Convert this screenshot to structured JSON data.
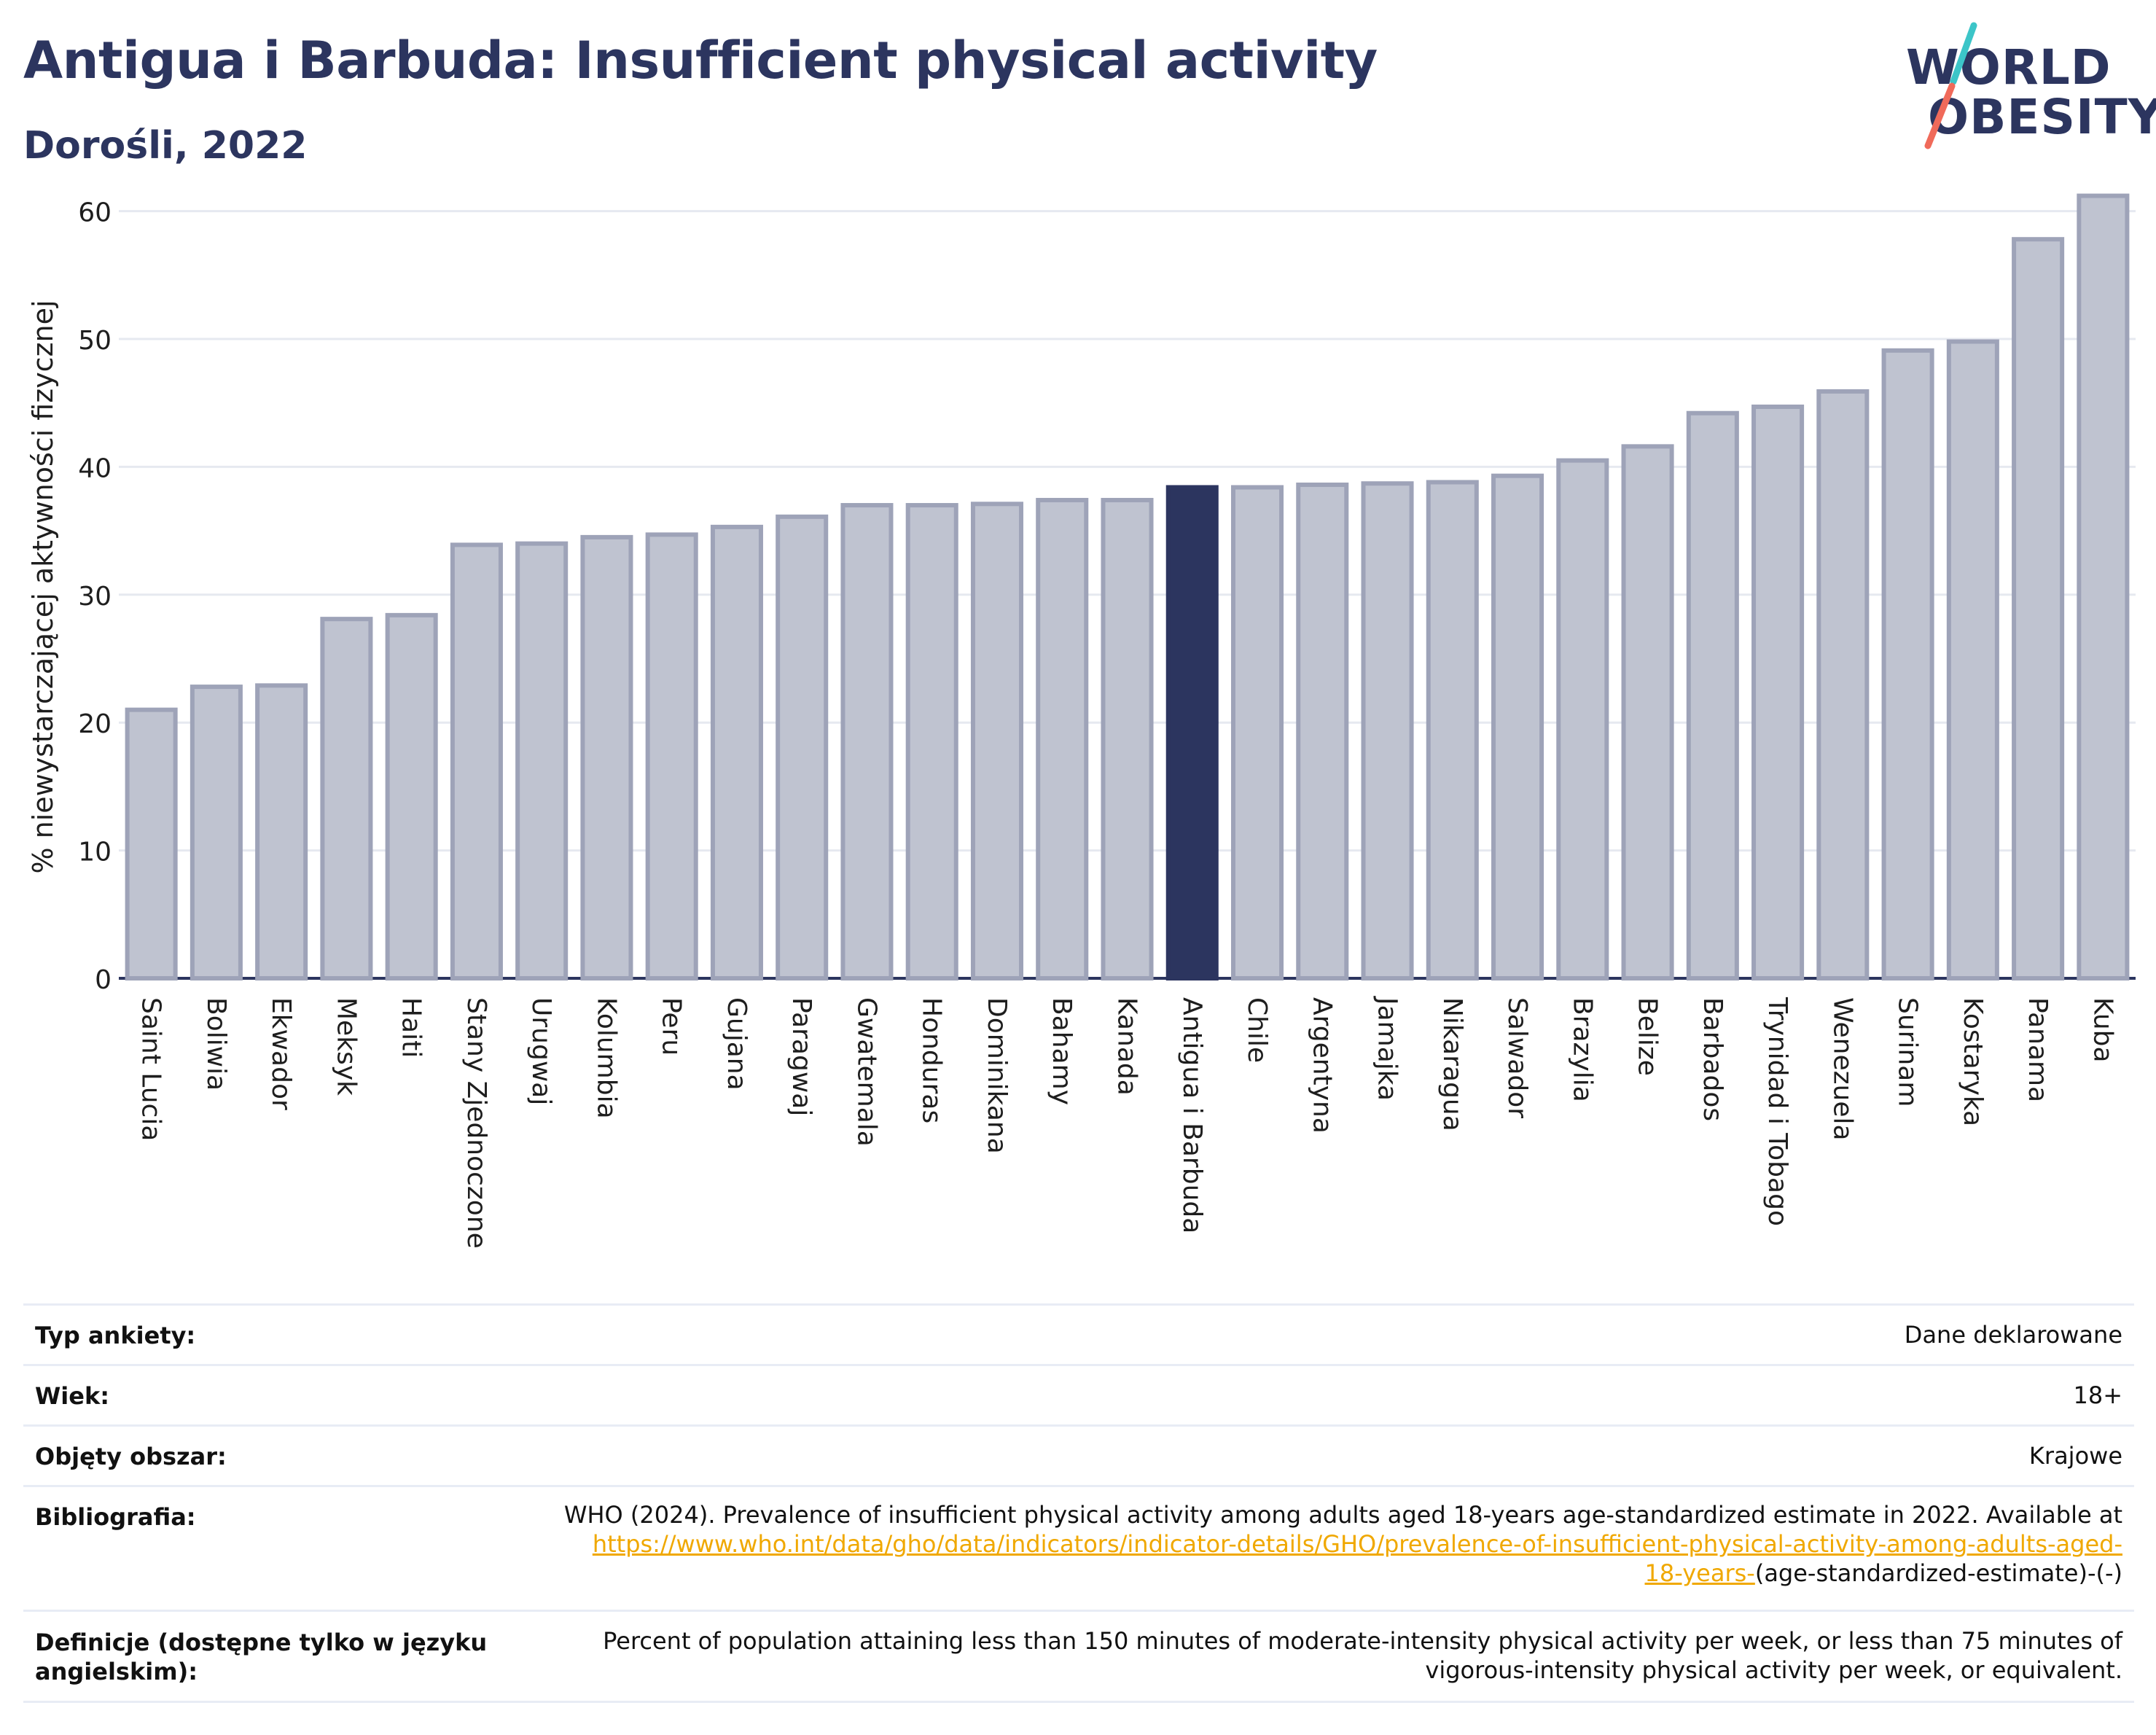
{
  "header": {
    "title": "Antigua i Barbuda: Insufficient physical activity",
    "subtitle": "Dorośli, 2022",
    "logo_line1": "WORLD",
    "logo_line2": "OBESITY"
  },
  "colors": {
    "bar": "#bfc3d0",
    "bar_outline": "#9ea3b8",
    "highlight": "#2c355f",
    "logo_teal": "#3cc5c8",
    "logo_coral": "#f06a5a",
    "link": "#f0a800"
  },
  "chart_data": {
    "type": "bar",
    "ylabel": "% niewystarczającej aktywności fizycznej",
    "ylim": [
      0,
      63
    ],
    "yticks": [
      0,
      10,
      20,
      30,
      40,
      50,
      60
    ],
    "grid": true,
    "highlight": "Antigua i Barbuda",
    "categories": [
      "Saint Lucia",
      "Boliwia",
      "Ekwador",
      "Meksyk",
      "Haiti",
      "Stany Zjednoczone",
      "Urugwaj",
      "Kolumbia",
      "Peru",
      "Gujana",
      "Paragwaj",
      "Gwatemala",
      "Honduras",
      "Dominikana",
      "Bahamy",
      "Kanada",
      "Antigua i Barbuda",
      "Chile",
      "Argentyna",
      "Jamajka",
      "Nikaragua",
      "Salwador",
      "Brazylia",
      "Belize",
      "Barbados",
      "Trynidad i Tobago",
      "Wenezuela",
      "Surinam",
      "Kostaryka",
      "Panama",
      "Kuba"
    ],
    "values": [
      21.0,
      22.8,
      22.9,
      28.1,
      28.4,
      33.9,
      34.0,
      34.5,
      34.7,
      35.3,
      36.1,
      37.0,
      37.0,
      37.1,
      37.4,
      37.4,
      38.4,
      38.4,
      38.6,
      38.7,
      38.8,
      39.3,
      40.5,
      41.6,
      44.2,
      44.7,
      45.9,
      49.1,
      49.8,
      57.8,
      61.2
    ]
  },
  "info": {
    "survey_label": "Typ ankiety:",
    "survey_value": "Dane deklarowane",
    "age_label": "Wiek:",
    "age_value": "18+",
    "area_label": "Objęty obszar:",
    "area_value": "Krajowe",
    "biblio_label": "Bibliografia:",
    "biblio_text": "WHO (2024). Prevalence of insufficient physical activity among adults aged 18-years age-standardized estimate in 2022. Available at",
    "biblio_link_1": "https://www.who.int/data/gho/data/indicators/indicator-details/GHO/prevalence-of-insufficient-physical-activity-among-adults-aged-",
    "biblio_link_2": "18-years-",
    "biblio_tail": "(age-standardized-estimate)-(-)",
    "def_label_1": "Definicje (dostępne tylko w języku",
    "def_label_2": "angielskim):",
    "def_text_1": "Percent of population attaining less than 150 minutes of moderate-intensity physical activity per week, or less than 75 minutes of",
    "def_text_2": "vigorous-intensity physical activity per week, or equivalent."
  }
}
